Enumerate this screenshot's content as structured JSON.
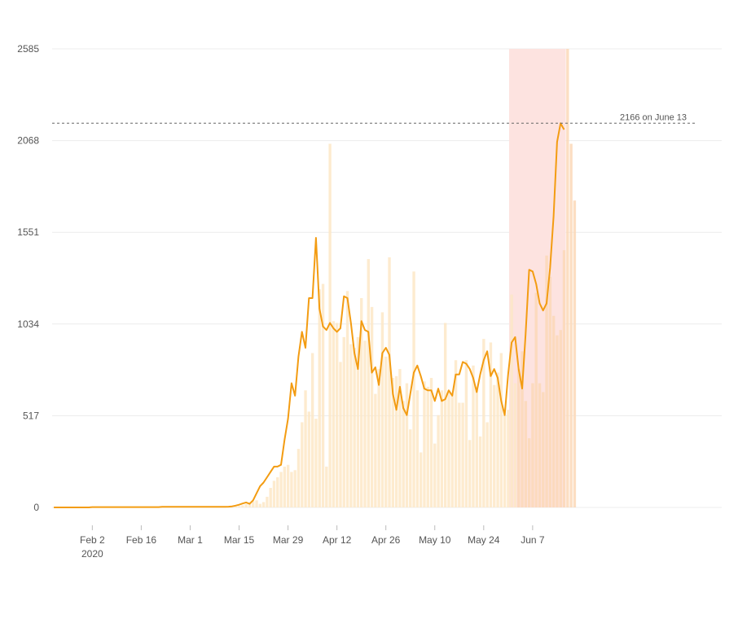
{
  "chart_data": {
    "type": "bar",
    "title": "",
    "xlabel": "",
    "ylabel": "",
    "ylim": [
      0,
      2585
    ],
    "yticks": [
      0,
      517,
      1034,
      1551,
      2068,
      2585
    ],
    "y_tick_labels": [
      "0",
      "517",
      "1034",
      "1551",
      "2068",
      "2585"
    ],
    "x_start_date": "2020-01-22",
    "xticks": [
      {
        "date": "2020-02-02",
        "label": "Feb 2",
        "sublabel": "2020"
      },
      {
        "date": "2020-02-16",
        "label": "Feb 16",
        "sublabel": ""
      },
      {
        "date": "2020-03-01",
        "label": "Mar 1",
        "sublabel": ""
      },
      {
        "date": "2020-03-15",
        "label": "Mar 15",
        "sublabel": ""
      },
      {
        "date": "2020-03-29",
        "label": "Mar 29",
        "sublabel": ""
      },
      {
        "date": "2020-04-12",
        "label": "Apr 12",
        "sublabel": ""
      },
      {
        "date": "2020-04-26",
        "label": "Apr 26",
        "sublabel": ""
      },
      {
        "date": "2020-05-10",
        "label": "May 10",
        "sublabel": ""
      },
      {
        "date": "2020-05-24",
        "label": "May 24",
        "sublabel": ""
      },
      {
        "date": "2020-06-07",
        "label": "Jun 7",
        "sublabel": ""
      }
    ],
    "series": [
      {
        "kind": "bar",
        "color": "#fde7c7",
        "highlight_color": "#fbd8b7",
        "values": [
          0,
          0,
          0,
          0,
          0,
          0,
          0,
          0,
          0,
          0,
          0,
          0,
          0,
          0,
          0,
          0,
          0,
          0,
          0,
          0,
          0,
          0,
          0,
          0,
          0,
          0,
          0,
          0,
          0,
          0,
          0,
          0,
          0,
          0,
          0,
          0,
          0,
          0,
          0,
          0,
          0,
          0,
          0,
          0,
          0,
          0,
          0,
          0,
          0,
          0,
          0,
          3,
          5,
          8,
          12,
          18,
          25,
          35,
          40,
          20,
          30,
          60,
          110,
          150,
          170,
          200,
          230,
          240,
          200,
          210,
          330,
          480,
          660,
          540,
          870,
          500,
          1230,
          1260,
          230,
          2050,
          1050,
          1040,
          820,
          960,
          1220,
          920,
          900,
          960,
          1180,
          940,
          1400,
          1130,
          640,
          780,
          1100,
          850,
          1410,
          730,
          740,
          780,
          600,
          700,
          440,
          1330,
          660,
          310,
          710,
          680,
          730,
          360,
          520,
          660,
          1040,
          660,
          640,
          830,
          590,
          590,
          830,
          380,
          800,
          680,
          400,
          950,
          480,
          930,
          690,
          760,
          870,
          520,
          550,
          1200,
          700,
          780,
          880,
          600,
          390,
          700,
          1210,
          700,
          650,
          1420,
          1300,
          1080,
          970,
          1000,
          1450,
          2585,
          2050,
          1730
        ],
        "highlight_from_index": 133
      },
      {
        "kind": "line",
        "color": "#f39c12",
        "values": [
          0,
          0,
          0,
          0,
          0,
          0,
          0,
          0,
          0,
          0,
          0,
          2,
          2,
          2,
          2,
          2,
          2,
          2,
          2,
          2,
          2,
          2,
          2,
          2,
          2,
          2,
          2,
          2,
          2,
          2,
          2,
          3,
          3,
          3,
          3,
          3,
          3,
          3,
          3,
          3,
          3,
          3,
          3,
          3,
          3,
          3,
          3,
          3,
          3,
          3,
          4,
          6,
          10,
          15,
          22,
          28,
          20,
          40,
          80,
          120,
          140,
          170,
          200,
          230,
          230,
          240,
          380,
          500,
          700,
          630,
          850,
          990,
          900,
          1180,
          1180,
          1520,
          1120,
          1020,
          1000,
          1040,
          1010,
          990,
          1010,
          1190,
          1180,
          1040,
          870,
          780,
          1050,
          1000,
          990,
          760,
          790,
          690,
          870,
          900,
          860,
          640,
          550,
          680,
          560,
          520,
          640,
          760,
          800,
          740,
          670,
          660,
          660,
          600,
          670,
          600,
          610,
          660,
          630,
          750,
          750,
          820,
          810,
          780,
          730,
          650,
          750,
          830,
          880,
          740,
          780,
          730,
          600,
          520,
          750,
          930,
          960,
          780,
          670,
          980,
          1340,
          1330,
          1260,
          1150,
          1110,
          1150,
          1350,
          1640,
          2060,
          2166,
          2130
        ]
      }
    ],
    "highlight_region": {
      "from_date": "2020-06-01",
      "to_date": "2020-06-16",
      "color": "#fde3e0"
    },
    "reference_line": {
      "value": 2166,
      "label": "2166 on June 13"
    },
    "grid": true,
    "legend": "none"
  }
}
